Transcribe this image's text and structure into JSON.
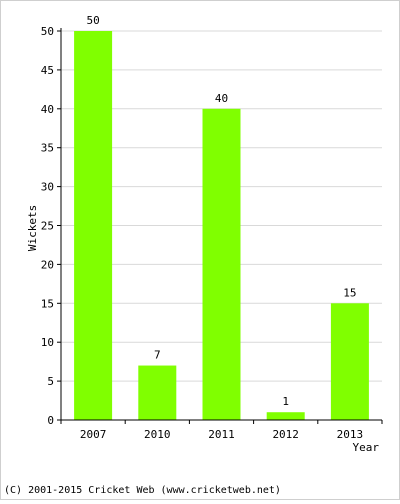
{
  "chart_data": {
    "type": "bar",
    "categories": [
      "2007",
      "2010",
      "2011",
      "2012",
      "2013"
    ],
    "values": [
      50,
      7,
      40,
      1,
      15
    ],
    "ylabel": "Wickets",
    "xlabel": "Year",
    "ylim": [
      0,
      50
    ],
    "yticks": [
      "0",
      "5",
      "10",
      "15",
      "20",
      "25",
      "30",
      "35",
      "40",
      "45",
      "50"
    ],
    "data_labels": [
      "50",
      "7",
      "40",
      "1",
      "15"
    ],
    "grid": true,
    "bar_color": "#80ff00",
    "grid_color": "#d9d9d9"
  },
  "footer": {
    "credit": "(C) 2001-2015 Cricket Web (www.cricketweb.net)"
  }
}
